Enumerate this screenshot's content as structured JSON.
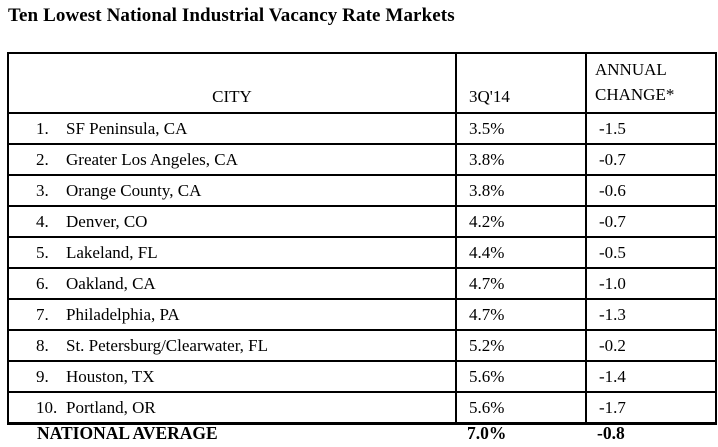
{
  "title": "Ten Lowest National Industrial Vacancy Rate Markets",
  "chart_data": {
    "type": "table",
    "title": "Ten Lowest National Industrial Vacancy Rate Markets",
    "columns": [
      "CITY",
      "3Q'14",
      "ANNUAL CHANGE*"
    ],
    "header": {
      "city": "CITY",
      "quarter": "3Q'14",
      "change": "ANNUAL CHANGE*"
    },
    "rows": [
      {
        "rank": "1.",
        "city": "SF Peninsula, CA",
        "vacancy": "3.5%",
        "change": "-1.5"
      },
      {
        "rank": "2.",
        "city": "Greater Los Angeles, CA",
        "vacancy": "3.8%",
        "change": "-0.7"
      },
      {
        "rank": "3.",
        "city": "Orange County, CA",
        "vacancy": "3.8%",
        "change": "-0.6"
      },
      {
        "rank": "4.",
        "city": "Denver, CO",
        "vacancy": "4.2%",
        "change": "-0.7"
      },
      {
        "rank": "5.",
        "city": "Lakeland, FL",
        "vacancy": "4.4%",
        "change": "-0.5"
      },
      {
        "rank": "6.",
        "city": "Oakland, CA",
        "vacancy": "4.7%",
        "change": "-1.0"
      },
      {
        "rank": "7.",
        "city": "Philadelphia, PA",
        "vacancy": "4.7%",
        "change": "-1.3"
      },
      {
        "rank": "8.",
        "city": "St. Petersburg/Clearwater, FL",
        "vacancy": "5.2%",
        "change": "-0.2"
      },
      {
        "rank": "9.",
        "city": "Houston, TX",
        "vacancy": "5.6%",
        "change": "-1.4"
      },
      {
        "rank": "10.",
        "city": "Portland, OR",
        "vacancy": "5.6%",
        "change": "-1.7"
      }
    ],
    "footer_row": {
      "label": "NATIONAL AVERAGE",
      "vacancy": "7.0%",
      "change": "-0.8"
    },
    "colors": {
      "text": "#000000",
      "border": "#000000",
      "background": "#ffffff"
    }
  }
}
